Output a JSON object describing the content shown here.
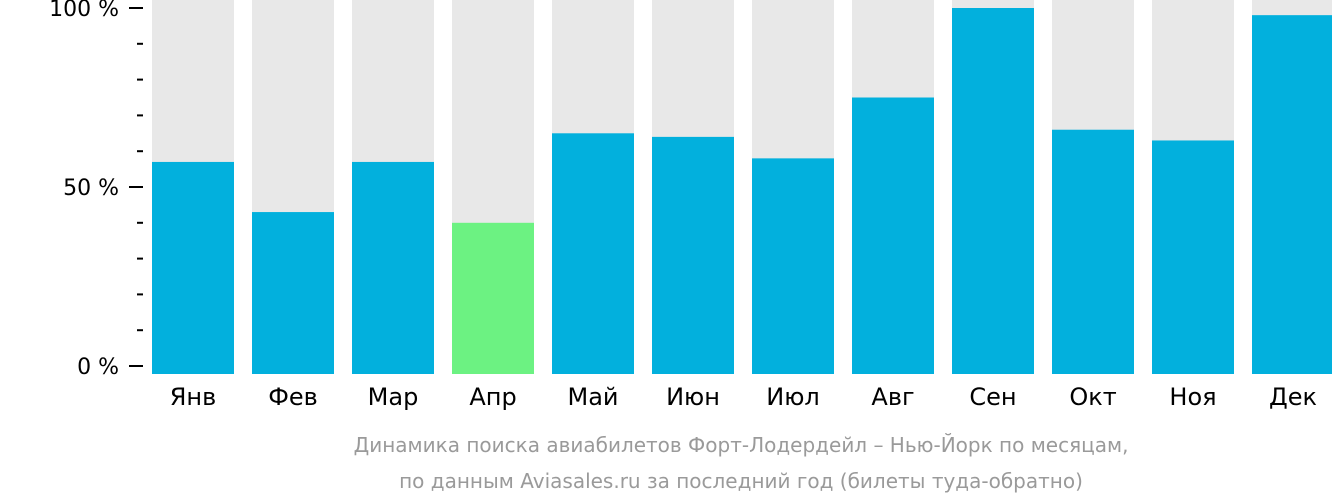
{
  "chart_data": {
    "type": "bar",
    "categories": [
      "Янв",
      "Фев",
      "Мар",
      "Апр",
      "Май",
      "Июн",
      "Июл",
      "Авг",
      "Сен",
      "Окт",
      "Ноя",
      "Дек"
    ],
    "values": [
      57,
      43,
      57,
      40,
      65,
      64,
      58,
      75,
      100,
      66,
      63,
      98
    ],
    "highlight_index": 3,
    "ylim": [
      0,
      100
    ],
    "y_ticks": [
      {
        "value": 0,
        "label": "0 %"
      },
      {
        "value": 50,
        "label": "50 %"
      },
      {
        "value": 100,
        "label": "100 %"
      }
    ],
    "y_minor_step": 10,
    "caption": [
      "Динамика поиска авиабилетов Форт-Лодердейл – Нью-Йорк по месяцам,",
      "по данным Aviasales.ru за последний год (билеты туда-обратно)"
    ],
    "colors": {
      "bar": "#02b0dd",
      "highlight": "#6cf282",
      "background_bar": "#e8e8e8",
      "axis": "#000000",
      "caption": "#9a9a9a"
    },
    "grid": false,
    "legend": "none"
  }
}
